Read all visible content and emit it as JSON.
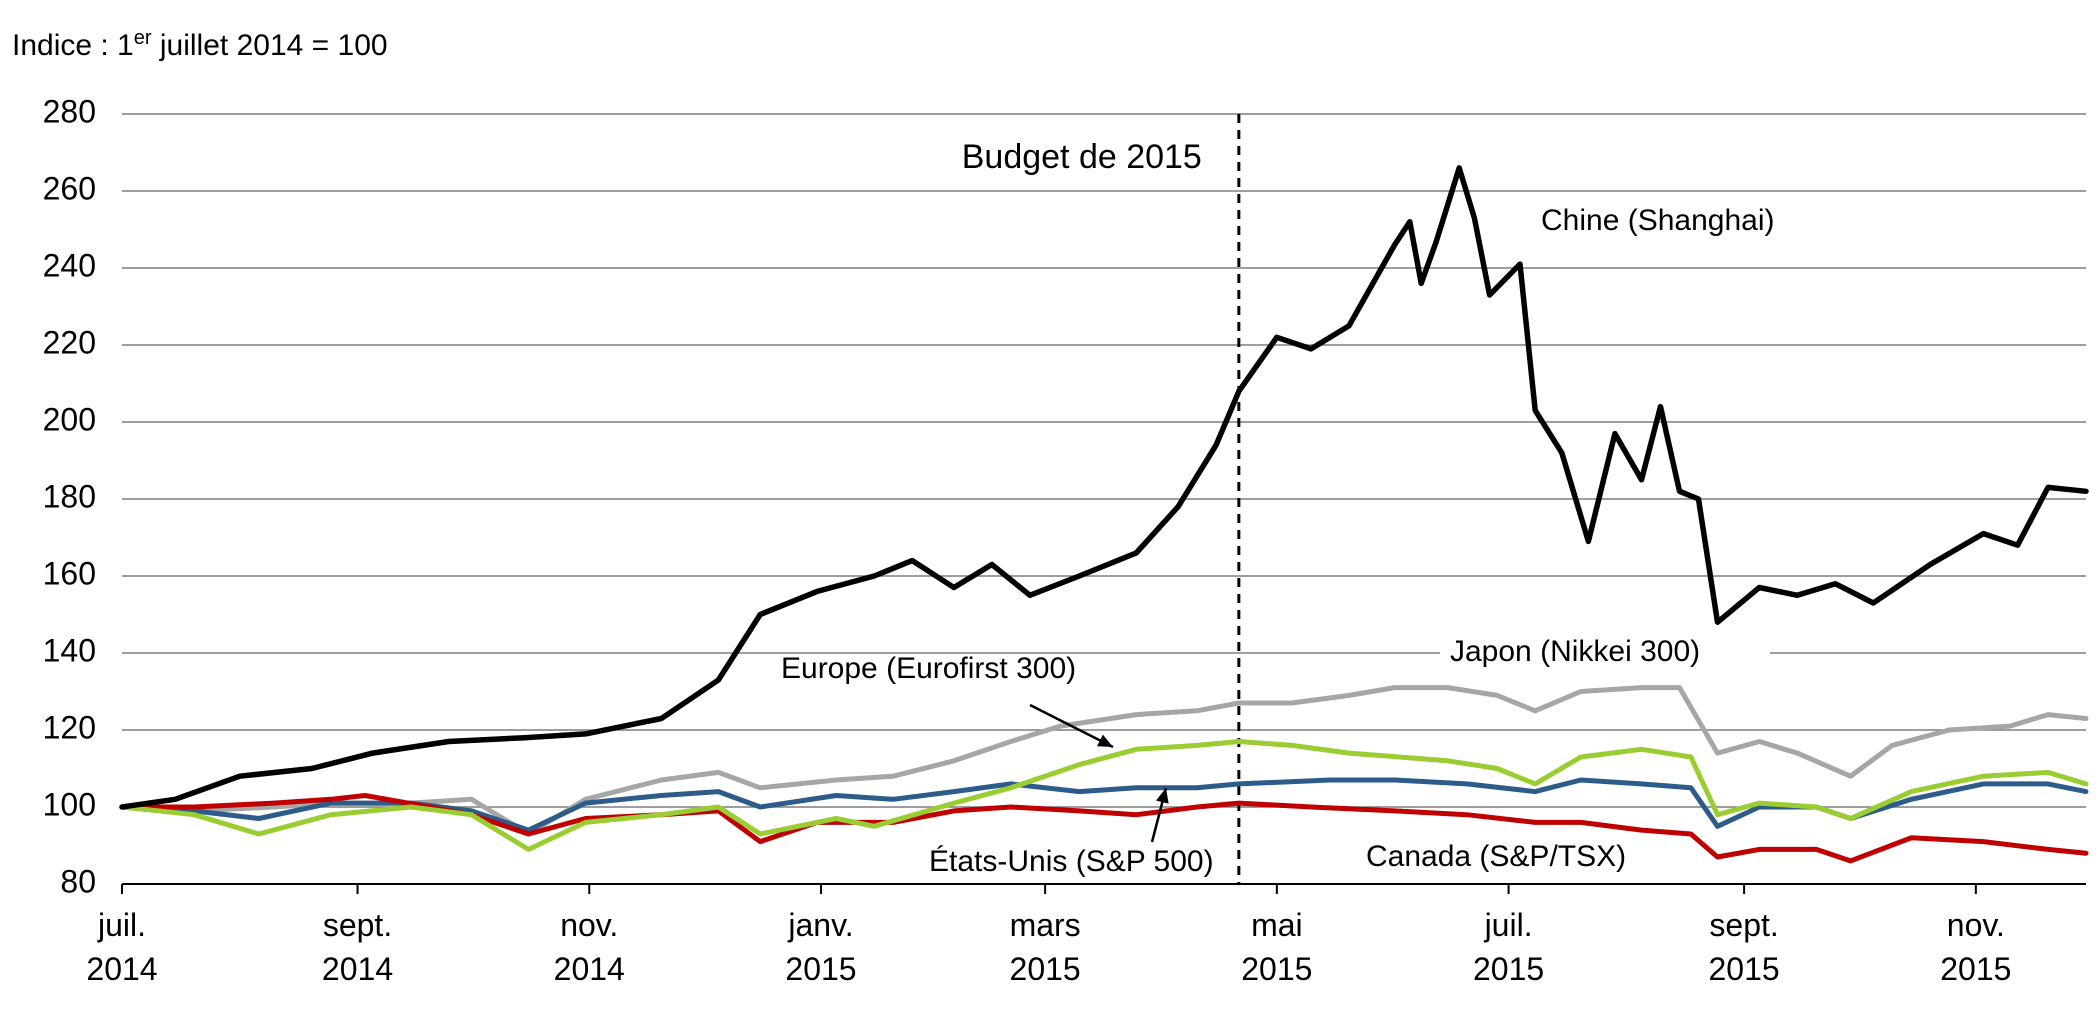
{
  "chart_data": {
    "type": "line",
    "unit_label": {
      "prefix": "Indice : 1",
      "sup": "er",
      "suffix": " juillet 2014 = 100"
    },
    "ylim": [
      80,
      280
    ],
    "yticks": [
      80,
      100,
      120,
      140,
      160,
      180,
      200,
      220,
      240,
      260,
      280
    ],
    "grid": true,
    "xlim": [
      "2014-07-01",
      "2015-11-30"
    ],
    "xticks": [
      {
        "date": "2014-07-01",
        "line1": "juil.",
        "line2": "2014"
      },
      {
        "date": "2014-09-01",
        "line1": "sept.",
        "line2": "2014"
      },
      {
        "date": "2014-11-01",
        "line1": "nov.",
        "line2": "2014"
      },
      {
        "date": "2015-01-01",
        "line1": "janv.",
        "line2": "2015"
      },
      {
        "date": "2015-03-01",
        "line1": "mars",
        "line2": "2015"
      },
      {
        "date": "2015-05-01",
        "line1": "mai",
        "line2": "2015"
      },
      {
        "date": "2015-07-01",
        "line1": "juil.",
        "line2": "2015"
      },
      {
        "date": "2015-09-01",
        "line1": "sept.",
        "line2": "2015"
      },
      {
        "date": "2015-11-01",
        "line1": "nov.",
        "line2": "2015"
      }
    ],
    "annotation": {
      "label": "Budget de 2015",
      "date": "2015-04-21"
    },
    "series": [
      {
        "name": "Japon (Nikkei 300)",
        "color": "#a6a6a6",
        "points": [
          [
            "2014-07-01",
            100
          ],
          [
            "2014-07-20",
            99
          ],
          [
            "2014-08-10",
            100
          ],
          [
            "2014-08-25",
            101
          ],
          [
            "2014-09-15",
            101
          ],
          [
            "2014-10-01",
            102
          ],
          [
            "2014-10-16",
            93
          ],
          [
            "2014-10-31",
            102
          ],
          [
            "2014-11-20",
            107
          ],
          [
            "2014-12-05",
            109
          ],
          [
            "2014-12-16",
            105
          ],
          [
            "2015-01-05",
            107
          ],
          [
            "2015-01-20",
            108
          ],
          [
            "2015-02-05",
            112
          ],
          [
            "2015-02-20",
            117
          ],
          [
            "2015-03-05",
            121
          ],
          [
            "2015-03-25",
            124
          ],
          [
            "2015-04-10",
            125
          ],
          [
            "2015-04-21",
            127
          ],
          [
            "2015-05-05",
            127
          ],
          [
            "2015-05-20",
            129
          ],
          [
            "2015-06-01",
            131
          ],
          [
            "2015-06-15",
            131
          ],
          [
            "2015-06-28",
            129
          ],
          [
            "2015-07-08",
            125
          ],
          [
            "2015-07-20",
            130
          ],
          [
            "2015-08-05",
            131
          ],
          [
            "2015-08-15",
            131
          ],
          [
            "2015-08-25",
            114
          ],
          [
            "2015-09-05",
            117
          ],
          [
            "2015-09-15",
            114
          ],
          [
            "2015-09-29",
            108
          ],
          [
            "2015-10-10",
            116
          ],
          [
            "2015-10-25",
            120
          ],
          [
            "2015-11-10",
            121
          ],
          [
            "2015-11-20",
            124
          ],
          [
            "2015-11-30",
            123
          ]
        ]
      },
      {
        "name": "États-Unis (S&P 500)",
        "color": "#2e5c8a",
        "points": [
          [
            "2014-07-01",
            100
          ],
          [
            "2014-07-20",
            99
          ],
          [
            "2014-08-06",
            97
          ],
          [
            "2014-08-25",
            101
          ],
          [
            "2014-09-15",
            101
          ],
          [
            "2014-10-01",
            99
          ],
          [
            "2014-10-16",
            94
          ],
          [
            "2014-10-31",
            101
          ],
          [
            "2014-11-20",
            103
          ],
          [
            "2014-12-05",
            104
          ],
          [
            "2014-12-16",
            100
          ],
          [
            "2015-01-05",
            103
          ],
          [
            "2015-01-20",
            102
          ],
          [
            "2015-02-05",
            104
          ],
          [
            "2015-02-20",
            106
          ],
          [
            "2015-03-10",
            104
          ],
          [
            "2015-03-25",
            105
          ],
          [
            "2015-04-10",
            105
          ],
          [
            "2015-04-21",
            106
          ],
          [
            "2015-05-15",
            107
          ],
          [
            "2015-06-01",
            107
          ],
          [
            "2015-06-20",
            106
          ],
          [
            "2015-07-08",
            104
          ],
          [
            "2015-07-20",
            107
          ],
          [
            "2015-08-05",
            106
          ],
          [
            "2015-08-18",
            105
          ],
          [
            "2015-08-25",
            95
          ],
          [
            "2015-09-05",
            100
          ],
          [
            "2015-09-20",
            100
          ],
          [
            "2015-09-29",
            97
          ],
          [
            "2015-10-15",
            102
          ],
          [
            "2015-11-03",
            106
          ],
          [
            "2015-11-20",
            106
          ],
          [
            "2015-11-30",
            104
          ]
        ]
      },
      {
        "name": "Canada (S&P/TSX)",
        "color": "#c00000",
        "points": [
          [
            "2014-07-01",
            100
          ],
          [
            "2014-07-20",
            100
          ],
          [
            "2014-08-10",
            101
          ],
          [
            "2014-08-25",
            102
          ],
          [
            "2014-09-03",
            103
          ],
          [
            "2014-09-20",
            100
          ],
          [
            "2014-10-01",
            98
          ],
          [
            "2014-10-16",
            93
          ],
          [
            "2014-10-31",
            97
          ],
          [
            "2014-11-20",
            98
          ],
          [
            "2014-12-05",
            99
          ],
          [
            "2014-12-16",
            91
          ],
          [
            "2014-12-31",
            96
          ],
          [
            "2015-01-20",
            96
          ],
          [
            "2015-02-05",
            99
          ],
          [
            "2015-02-20",
            100
          ],
          [
            "2015-03-10",
            99
          ],
          [
            "2015-03-25",
            98
          ],
          [
            "2015-04-10",
            100
          ],
          [
            "2015-04-21",
            101
          ],
          [
            "2015-05-10",
            100
          ],
          [
            "2015-06-01",
            99
          ],
          [
            "2015-06-20",
            98
          ],
          [
            "2015-07-08",
            96
          ],
          [
            "2015-07-20",
            96
          ],
          [
            "2015-08-05",
            94
          ],
          [
            "2015-08-18",
            93
          ],
          [
            "2015-08-25",
            87
          ],
          [
            "2015-09-05",
            89
          ],
          [
            "2015-09-20",
            89
          ],
          [
            "2015-09-29",
            86
          ],
          [
            "2015-10-15",
            92
          ],
          [
            "2015-11-03",
            91
          ],
          [
            "2015-11-20",
            89
          ],
          [
            "2015-11-30",
            88
          ]
        ]
      },
      {
        "name": "Europe (Eurofirst 300)",
        "color": "#9acd32",
        "points": [
          [
            "2014-07-01",
            100
          ],
          [
            "2014-07-20",
            98
          ],
          [
            "2014-08-06",
            93
          ],
          [
            "2014-08-25",
            98
          ],
          [
            "2014-09-15",
            100
          ],
          [
            "2014-10-01",
            98
          ],
          [
            "2014-10-16",
            89
          ],
          [
            "2014-10-31",
            96
          ],
          [
            "2014-11-20",
            98
          ],
          [
            "2014-12-05",
            100
          ],
          [
            "2014-12-16",
            93
          ],
          [
            "2015-01-05",
            97
          ],
          [
            "2015-01-15",
            95
          ],
          [
            "2015-02-05",
            101
          ],
          [
            "2015-02-20",
            105
          ],
          [
            "2015-03-10",
            111
          ],
          [
            "2015-03-25",
            115
          ],
          [
            "2015-04-10",
            116
          ],
          [
            "2015-04-21",
            117
          ],
          [
            "2015-05-05",
            116
          ],
          [
            "2015-05-20",
            114
          ],
          [
            "2015-06-15",
            112
          ],
          [
            "2015-06-28",
            110
          ],
          [
            "2015-07-08",
            106
          ],
          [
            "2015-07-20",
            113
          ],
          [
            "2015-08-05",
            115
          ],
          [
            "2015-08-18",
            113
          ],
          [
            "2015-08-25",
            98
          ],
          [
            "2015-09-05",
            101
          ],
          [
            "2015-09-20",
            100
          ],
          [
            "2015-09-29",
            97
          ],
          [
            "2015-10-15",
            104
          ],
          [
            "2015-11-03",
            108
          ],
          [
            "2015-11-20",
            109
          ],
          [
            "2015-11-30",
            106
          ]
        ]
      },
      {
        "name": "Chine (Shanghai)",
        "color": "#000000",
        "points": [
          [
            "2014-07-01",
            100
          ],
          [
            "2014-07-15",
            102
          ],
          [
            "2014-08-01",
            108
          ],
          [
            "2014-08-20",
            110
          ],
          [
            "2014-09-05",
            114
          ],
          [
            "2014-09-25",
            117
          ],
          [
            "2014-10-15",
            118
          ],
          [
            "2014-10-31",
            119
          ],
          [
            "2014-11-20",
            123
          ],
          [
            "2014-12-05",
            133
          ],
          [
            "2014-12-16",
            150
          ],
          [
            "2014-12-31",
            156
          ],
          [
            "2015-01-15",
            160
          ],
          [
            "2015-01-25",
            164
          ],
          [
            "2015-02-05",
            157
          ],
          [
            "2015-02-15",
            163
          ],
          [
            "2015-02-25",
            155
          ],
          [
            "2015-03-10",
            160
          ],
          [
            "2015-03-25",
            166
          ],
          [
            "2015-04-05",
            178
          ],
          [
            "2015-04-15",
            194
          ],
          [
            "2015-04-21",
            208
          ],
          [
            "2015-05-01",
            222
          ],
          [
            "2015-05-10",
            219
          ],
          [
            "2015-05-20",
            225
          ],
          [
            "2015-05-28",
            239
          ],
          [
            "2015-06-01",
            246
          ],
          [
            "2015-06-05",
            252
          ],
          [
            "2015-06-08",
            236
          ],
          [
            "2015-06-12",
            247
          ],
          [
            "2015-06-18",
            266
          ],
          [
            "2015-06-22",
            253
          ],
          [
            "2015-06-26",
            233
          ],
          [
            "2015-07-04",
            241
          ],
          [
            "2015-07-08",
            203
          ],
          [
            "2015-07-15",
            192
          ],
          [
            "2015-07-22",
            169
          ],
          [
            "2015-07-29",
            197
          ],
          [
            "2015-08-05",
            185
          ],
          [
            "2015-08-10",
            204
          ],
          [
            "2015-08-15",
            182
          ],
          [
            "2015-08-20",
            180
          ],
          [
            "2015-08-25",
            148
          ],
          [
            "2015-09-05",
            157
          ],
          [
            "2015-09-15",
            155
          ],
          [
            "2015-09-25",
            158
          ],
          [
            "2015-10-05",
            153
          ],
          [
            "2015-10-20",
            163
          ],
          [
            "2015-11-03",
            171
          ],
          [
            "2015-11-12",
            168
          ],
          [
            "2015-11-20",
            183
          ],
          [
            "2015-11-30",
            182
          ]
        ]
      }
    ]
  }
}
